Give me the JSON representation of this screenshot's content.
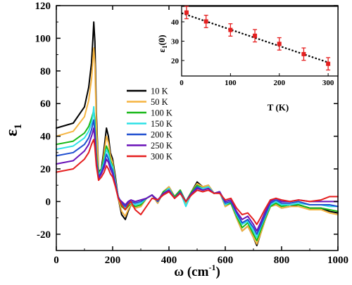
{
  "chart_data": [
    {
      "type": "line",
      "xlabel": "ω (cm",
      "xlabel_sup": "-1",
      "xlabel_end": ")",
      "ylabel": "ε",
      "ylabel_sub": "1",
      "xlim": [
        0,
        1000
      ],
      "ylim": [
        -30,
        120
      ],
      "xticks": [
        0,
        200,
        400,
        600,
        800,
        1000
      ],
      "yticks": [
        -20,
        0,
        20,
        40,
        60,
        80,
        100,
        120
      ],
      "legend_position": "center-right",
      "series": [
        {
          "name": "10 K",
          "color": "#000000",
          "eps0": 45,
          "peak": 110,
          "shift": 0,
          "x": [
            0,
            60,
            100,
            115,
            125,
            130,
            133,
            137,
            142,
            150,
            160,
            170,
            178,
            185,
            192,
            200,
            210,
            220,
            232,
            245,
            255,
            265,
            280,
            300,
            320,
            340,
            360,
            380,
            400,
            420,
            440,
            460,
            480,
            500,
            520,
            540,
            560,
            580,
            600,
            620,
            640,
            660,
            680,
            700,
            712,
            725,
            740,
            760,
            780,
            800,
            830,
            860,
            900,
            940,
            970,
            1000
          ],
          "y": [
            45,
            48,
            58,
            70,
            85,
            100,
            110,
            98,
            55,
            18,
            20,
            33,
            45,
            40,
            30,
            26,
            15,
            2,
            -8,
            -11,
            -6,
            -2,
            -4,
            -3,
            2,
            4,
            -1,
            6,
            9,
            3,
            7,
            -1,
            6,
            12,
            9,
            10,
            5,
            6,
            -3,
            -1,
            -10,
            -18,
            -15,
            -22,
            -27,
            -20,
            -12,
            -3,
            -2,
            -4,
            -3,
            -2,
            -4,
            -4,
            -6,
            -7
          ]
        },
        {
          "name": "50 K",
          "color": "#F5B440",
          "eps0": 40,
          "peak": 94,
          "shift": 0,
          "x": [
            0,
            60,
            100,
            115,
            125,
            130,
            133,
            137,
            142,
            150,
            160,
            170,
            178,
            185,
            192,
            200,
            210,
            220,
            232,
            245,
            255,
            265,
            280,
            300,
            320,
            340,
            360,
            380,
            400,
            420,
            440,
            460,
            480,
            500,
            520,
            540,
            560,
            580,
            600,
            620,
            640,
            660,
            680,
            700,
            712,
            725,
            740,
            760,
            780,
            800,
            830,
            860,
            900,
            940,
            970,
            1000
          ],
          "y": [
            40,
            43,
            52,
            62,
            75,
            87,
            94,
            84,
            48,
            17,
            18,
            30,
            40,
            36,
            28,
            24,
            13,
            2,
            -6,
            -9,
            -5,
            -2,
            -4,
            -3,
            2,
            4,
            -1,
            6,
            9,
            3,
            7,
            -1,
            6,
            11,
            9,
            10,
            5,
            6,
            -3,
            -1,
            -10,
            -18,
            -15,
            -22,
            -26,
            -20,
            -12,
            -3,
            -2,
            -4,
            -3,
            -3,
            -5,
            -5,
            -7,
            -8
          ]
        },
        {
          "name": "100 K",
          "color": "#18B818",
          "eps0": 35,
          "peak": 56,
          "shift": 0,
          "x": [
            0,
            60,
            100,
            115,
            125,
            130,
            133,
            137,
            142,
            150,
            160,
            170,
            178,
            185,
            192,
            200,
            210,
            220,
            232,
            245,
            255,
            265,
            280,
            300,
            320,
            340,
            360,
            380,
            400,
            420,
            440,
            460,
            480,
            500,
            520,
            540,
            560,
            580,
            600,
            620,
            640,
            660,
            680,
            700,
            712,
            725,
            740,
            760,
            780,
            800,
            830,
            860,
            900,
            940,
            970,
            1000
          ],
          "y": [
            35,
            37,
            42,
            46,
            51,
            54,
            56,
            50,
            30,
            17,
            20,
            27,
            34,
            31,
            25,
            22,
            12,
            3,
            -3,
            -5,
            -3,
            -1,
            -3,
            -2,
            2,
            4,
            0,
            6,
            8,
            3,
            7,
            0,
            6,
            10,
            8,
            9,
            5,
            6,
            -2,
            -1,
            -9,
            -16,
            -13,
            -20,
            -24,
            -18,
            -11,
            -3,
            -1,
            -3,
            -2,
            -2,
            -4,
            -4,
            -5,
            -6
          ]
        },
        {
          "name": "150 K",
          "color": "#2DE0E6",
          "eps0": 32,
          "peak": 58,
          "shift": 0,
          "x": [
            0,
            60,
            100,
            115,
            125,
            130,
            133,
            137,
            142,
            150,
            160,
            170,
            178,
            185,
            192,
            200,
            210,
            220,
            232,
            245,
            255,
            265,
            280,
            300,
            320,
            340,
            360,
            380,
            400,
            420,
            440,
            460,
            480,
            500,
            520,
            540,
            560,
            580,
            600,
            620,
            640,
            660,
            680,
            700,
            712,
            725,
            740,
            760,
            780,
            800,
            830,
            860,
            900,
            940,
            970,
            1000
          ],
          "y": [
            32,
            34,
            39,
            43,
            48,
            53,
            58,
            45,
            27,
            16,
            19,
            25,
            32,
            29,
            24,
            21,
            12,
            3,
            -2,
            -4,
            -2,
            -1,
            -2,
            -1,
            2,
            4,
            0,
            5,
            8,
            2,
            6,
            -3,
            5,
            9,
            8,
            9,
            5,
            6,
            -2,
            0,
            -8,
            -14,
            -12,
            -18,
            -22,
            -16,
            -10,
            -2,
            0,
            -2,
            -2,
            -1,
            -2,
            -2,
            -3,
            -3
          ]
        },
        {
          "name": "200 K",
          "color": "#1F4FD0",
          "eps0": 28,
          "peak": 50,
          "shift": 0,
          "x": [
            0,
            60,
            100,
            115,
            125,
            130,
            133,
            137,
            142,
            150,
            160,
            170,
            178,
            185,
            192,
            200,
            210,
            220,
            232,
            245,
            255,
            265,
            280,
            300,
            320,
            340,
            360,
            380,
            400,
            420,
            440,
            460,
            480,
            500,
            520,
            540,
            560,
            580,
            600,
            620,
            640,
            660,
            680,
            700,
            712,
            725,
            740,
            760,
            780,
            800,
            830,
            860,
            900,
            940,
            970,
            1000
          ],
          "y": [
            28,
            30,
            35,
            39,
            44,
            48,
            50,
            42,
            26,
            15,
            18,
            23,
            29,
            26,
            22,
            19,
            11,
            3,
            -1,
            -3,
            -1,
            0,
            -1,
            0,
            2,
            4,
            0,
            5,
            7,
            2,
            6,
            0,
            5,
            9,
            7,
            8,
            5,
            6,
            -1,
            0,
            -7,
            -13,
            -11,
            -16,
            -20,
            -15,
            -9,
            -1,
            1,
            -1,
            -1,
            0,
            -2,
            -2,
            -2,
            -3
          ]
        },
        {
          "name": "250 K",
          "color": "#6A14B8",
          "eps0": 23,
          "peak": 45,
          "shift": 0,
          "x": [
            0,
            60,
            100,
            115,
            125,
            130,
            133,
            137,
            142,
            150,
            160,
            170,
            178,
            185,
            192,
            200,
            210,
            220,
            232,
            245,
            255,
            265,
            280,
            300,
            320,
            340,
            360,
            380,
            400,
            420,
            440,
            460,
            480,
            500,
            520,
            540,
            560,
            580,
            600,
            620,
            640,
            660,
            680,
            700,
            712,
            725,
            740,
            760,
            780,
            800,
            830,
            860,
            900,
            940,
            970,
            1000
          ],
          "y": [
            23,
            25,
            31,
            35,
            40,
            43,
            45,
            38,
            24,
            14,
            17,
            21,
            26,
            24,
            20,
            17,
            10,
            2,
            0,
            -2,
            0,
            1,
            0,
            1,
            2,
            4,
            1,
            5,
            7,
            2,
            5,
            0,
            5,
            8,
            7,
            8,
            5,
            6,
            0,
            1,
            -6,
            -11,
            -9,
            -14,
            -18,
            -13,
            -7,
            0,
            2,
            0,
            0,
            1,
            0,
            0,
            0,
            0
          ]
        },
        {
          "name": "300 K",
          "color": "#E51F1F",
          "eps0": 18,
          "peak": 38,
          "shift": 0,
          "x": [
            0,
            60,
            100,
            115,
            125,
            130,
            133,
            137,
            142,
            150,
            160,
            170,
            178,
            185,
            192,
            200,
            210,
            220,
            232,
            245,
            255,
            265,
            280,
            300,
            320,
            340,
            360,
            380,
            400,
            420,
            440,
            460,
            480,
            500,
            520,
            540,
            560,
            580,
            600,
            620,
            640,
            660,
            680,
            700,
            712,
            725,
            740,
            760,
            780,
            800,
            830,
            860,
            900,
            940,
            970,
            1000
          ],
          "y": [
            18,
            20,
            26,
            30,
            35,
            37,
            38,
            33,
            22,
            13,
            15,
            18,
            22,
            20,
            17,
            15,
            9,
            2,
            -2,
            -5,
            -2,
            0,
            -5,
            -8,
            -3,
            2,
            1,
            4,
            6,
            2,
            5,
            0,
            4,
            7,
            6,
            7,
            5,
            5,
            1,
            2,
            -4,
            -8,
            -7,
            -11,
            -14,
            -10,
            -5,
            1,
            2,
            1,
            0,
            1,
            0,
            1,
            3,
            3
          ]
        }
      ]
    },
    {
      "type": "scatter",
      "xlabel": "T (K)",
      "ylabel": "ε",
      "ylabel_sub": "1",
      "ylabel_end": "(0)",
      "xlim": [
        0,
        320
      ],
      "ylim": [
        12,
        48
      ],
      "xticks": [
        0,
        100,
        200,
        300
      ],
      "yticks": [
        20,
        30,
        40
      ],
      "marker_color": "#E51F1F",
      "fit_color": "#000000",
      "fit": {
        "x": [
          0,
          300
        ],
        "y": [
          44.5,
          19.0
        ]
      },
      "points": {
        "x": [
          10,
          50,
          100,
          150,
          200,
          250,
          300
        ],
        "y": [
          44.8,
          40.2,
          35.8,
          32.8,
          28.6,
          23.3,
          18.3
        ],
        "err": [
          3.2,
          3.2,
          3.2,
          3.2,
          3.2,
          3.2,
          3.2
        ]
      }
    }
  ]
}
